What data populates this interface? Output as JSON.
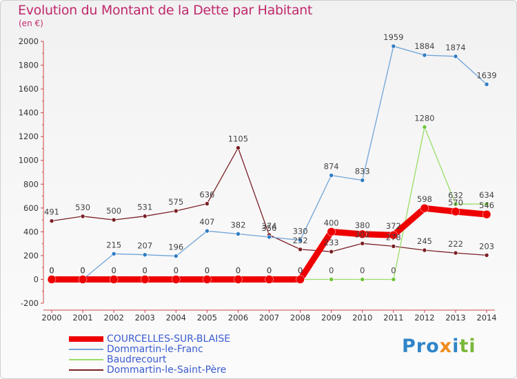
{
  "header": {
    "title": "Evolution du Montant de la Dette par Habitant",
    "subtitle": "(en €)"
  },
  "logo": {
    "text": "Proxiti"
  },
  "chart_data": {
    "type": "line",
    "title": "Evolution du Montant de la Dette par Habitant",
    "subtitle": "(en €)",
    "x": [
      "2000",
      "2001",
      "2002",
      "2003",
      "2004",
      "2005",
      "2006",
      "2007",
      "2008",
      "2009",
      "2010",
      "2011",
      "2012",
      "2013",
      "2014"
    ],
    "ylim": [
      -200,
      2000
    ],
    "yticks": [
      "-200",
      "0",
      "200",
      "400",
      "600",
      "800",
      "1000",
      "1200",
      "1400",
      "1600",
      "1800",
      "2000"
    ],
    "grid": false,
    "legend_position": "bottom-left",
    "series": [
      {
        "name": "COURCELLES-SUR-BLAISE",
        "color": "#ee0000",
        "bold": true,
        "values": [
          0,
          0,
          0,
          0,
          0,
          0,
          0,
          0,
          0,
          400,
          380,
          372,
          598,
          570,
          546
        ],
        "labels": [
          "0",
          "0",
          "0",
          "0",
          "0",
          "0",
          "0",
          "0",
          "0",
          "400",
          "380",
          "372",
          "598",
          "570",
          "546"
        ]
      },
      {
        "name": "Dommartin-le-Franc",
        "color": "#6fa3d8",
        "marker": "#2f7cc4",
        "values": [
          0,
          0,
          215,
          207,
          196,
          407,
          382,
          356,
          330,
          874,
          833,
          1959,
          1884,
          1874,
          1639
        ],
        "labels": [
          "0",
          "0",
          "215",
          "207",
          "196",
          "407",
          "382",
          "356",
          "330",
          "874",
          "833",
          "1959",
          "1884",
          "1874",
          "1639"
        ]
      },
      {
        "name": "Baudrecourt",
        "color": "#99dd66",
        "marker": "#6fc43a",
        "values": [
          0,
          0,
          0,
          0,
          0,
          0,
          0,
          0,
          0,
          0,
          0,
          0,
          1280,
          632,
          634
        ],
        "labels": [
          "0",
          "0",
          "0",
          "0",
          "0",
          "0",
          "0",
          "0",
          "0",
          "0",
          "0",
          "0",
          "1280",
          "632",
          "634"
        ]
      },
      {
        "name": "Dommartin-le-Saint-Père",
        "color": "#7a1f24",
        "marker": "#7a1f24",
        "values": [
          491,
          530,
          500,
          531,
          575,
          636,
          1105,
          374,
          252,
          233,
          302,
          278,
          245,
          222,
          203
        ],
        "labels": [
          "491",
          "530",
          "500",
          "531",
          "575",
          "636",
          "1105",
          "374",
          "252",
          "233",
          "302",
          "278",
          "245",
          "222",
          "203"
        ]
      }
    ]
  }
}
